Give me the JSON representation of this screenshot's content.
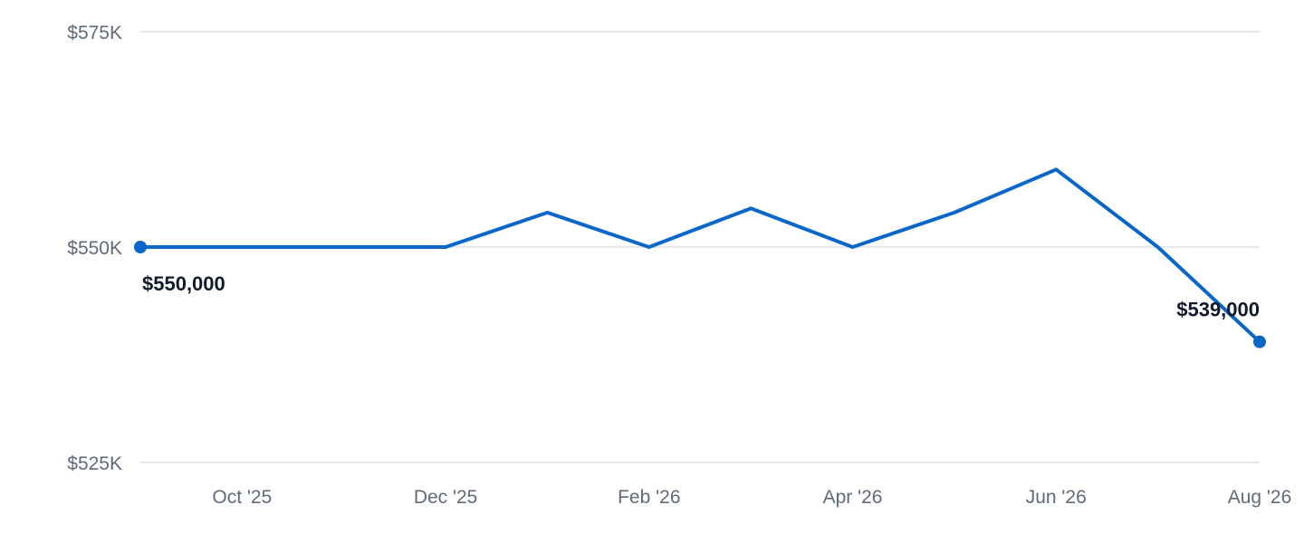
{
  "chart_data": {
    "type": "line",
    "title": "",
    "xlabel": "",
    "ylabel": "",
    "x": [
      "2025-09",
      "2025-10",
      "2025-11",
      "2025-12",
      "2026-01",
      "2026-02",
      "2026-03",
      "2026-04",
      "2026-05",
      "2026-06",
      "2026-07",
      "2026-08"
    ],
    "series": [
      {
        "values": [
          550000,
          550000,
          550000,
          550000,
          554000,
          550000,
          554500,
          550000,
          554000,
          559000,
          550000,
          539000
        ]
      }
    ],
    "ylim": [
      525000,
      575000
    ],
    "y_ticks": [
      {
        "value": 575000,
        "label": "$575K"
      },
      {
        "value": 550000,
        "label": "$550K"
      },
      {
        "value": 525000,
        "label": "$525K"
      }
    ],
    "x_ticks": [
      {
        "x": "2025-10",
        "label": "Oct '25"
      },
      {
        "x": "2025-12",
        "label": "Dec '25"
      },
      {
        "x": "2026-02",
        "label": "Feb '26"
      },
      {
        "x": "2026-04",
        "label": "Apr '26"
      },
      {
        "x": "2026-06",
        "label": "Jun '26"
      },
      {
        "x": "2026-08",
        "label": "Aug '26"
      }
    ],
    "annotations": [
      {
        "x": "2025-09",
        "label": "$550,000"
      },
      {
        "x": "2026-08",
        "label": "$539,000"
      }
    ],
    "grid": true,
    "legend": "none",
    "line_color": "#0a66c8",
    "grid_color": "#dde1e6",
    "tick_color": "#5f6b7a",
    "label_color": "#0f1b2d"
  }
}
